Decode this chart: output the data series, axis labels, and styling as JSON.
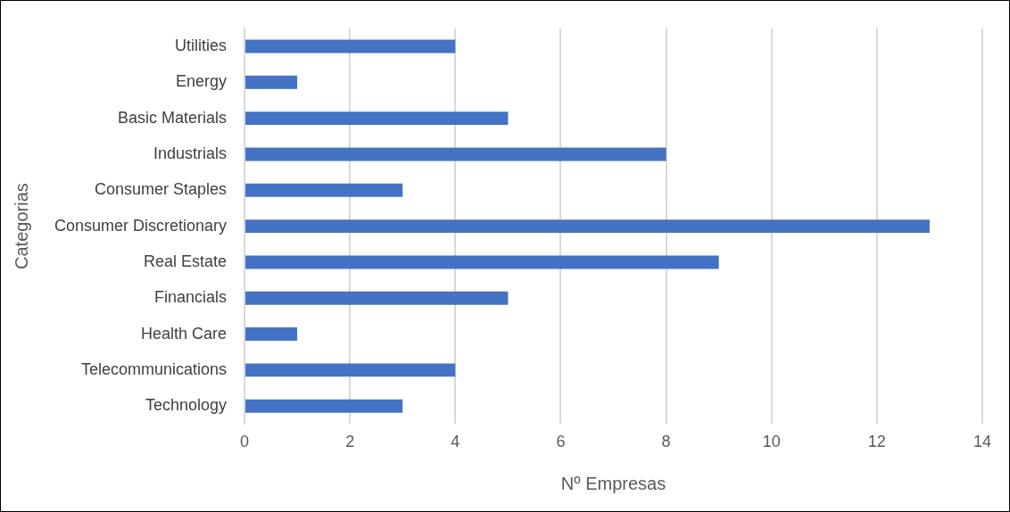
{
  "chart_data": {
    "type": "bar",
    "orientation": "horizontal",
    "xlabel": "Nº Empresas",
    "ylabel": "Categorias",
    "categories": [
      "Utilities",
      "Energy",
      "Basic Materials",
      "Industrials",
      "Consumer Staples",
      "Consumer Discretionary",
      "Real Estate",
      "Financials",
      "Health Care",
      "Telecommunications",
      "Technology"
    ],
    "values": [
      4,
      1,
      5,
      8,
      3,
      13,
      9,
      5,
      1,
      4,
      3
    ],
    "color": "#4472c4",
    "xlim": [
      0,
      14
    ],
    "xticks": [
      0,
      2,
      4,
      6,
      8,
      10,
      12,
      14
    ],
    "grid": "x",
    "legend": false
  }
}
